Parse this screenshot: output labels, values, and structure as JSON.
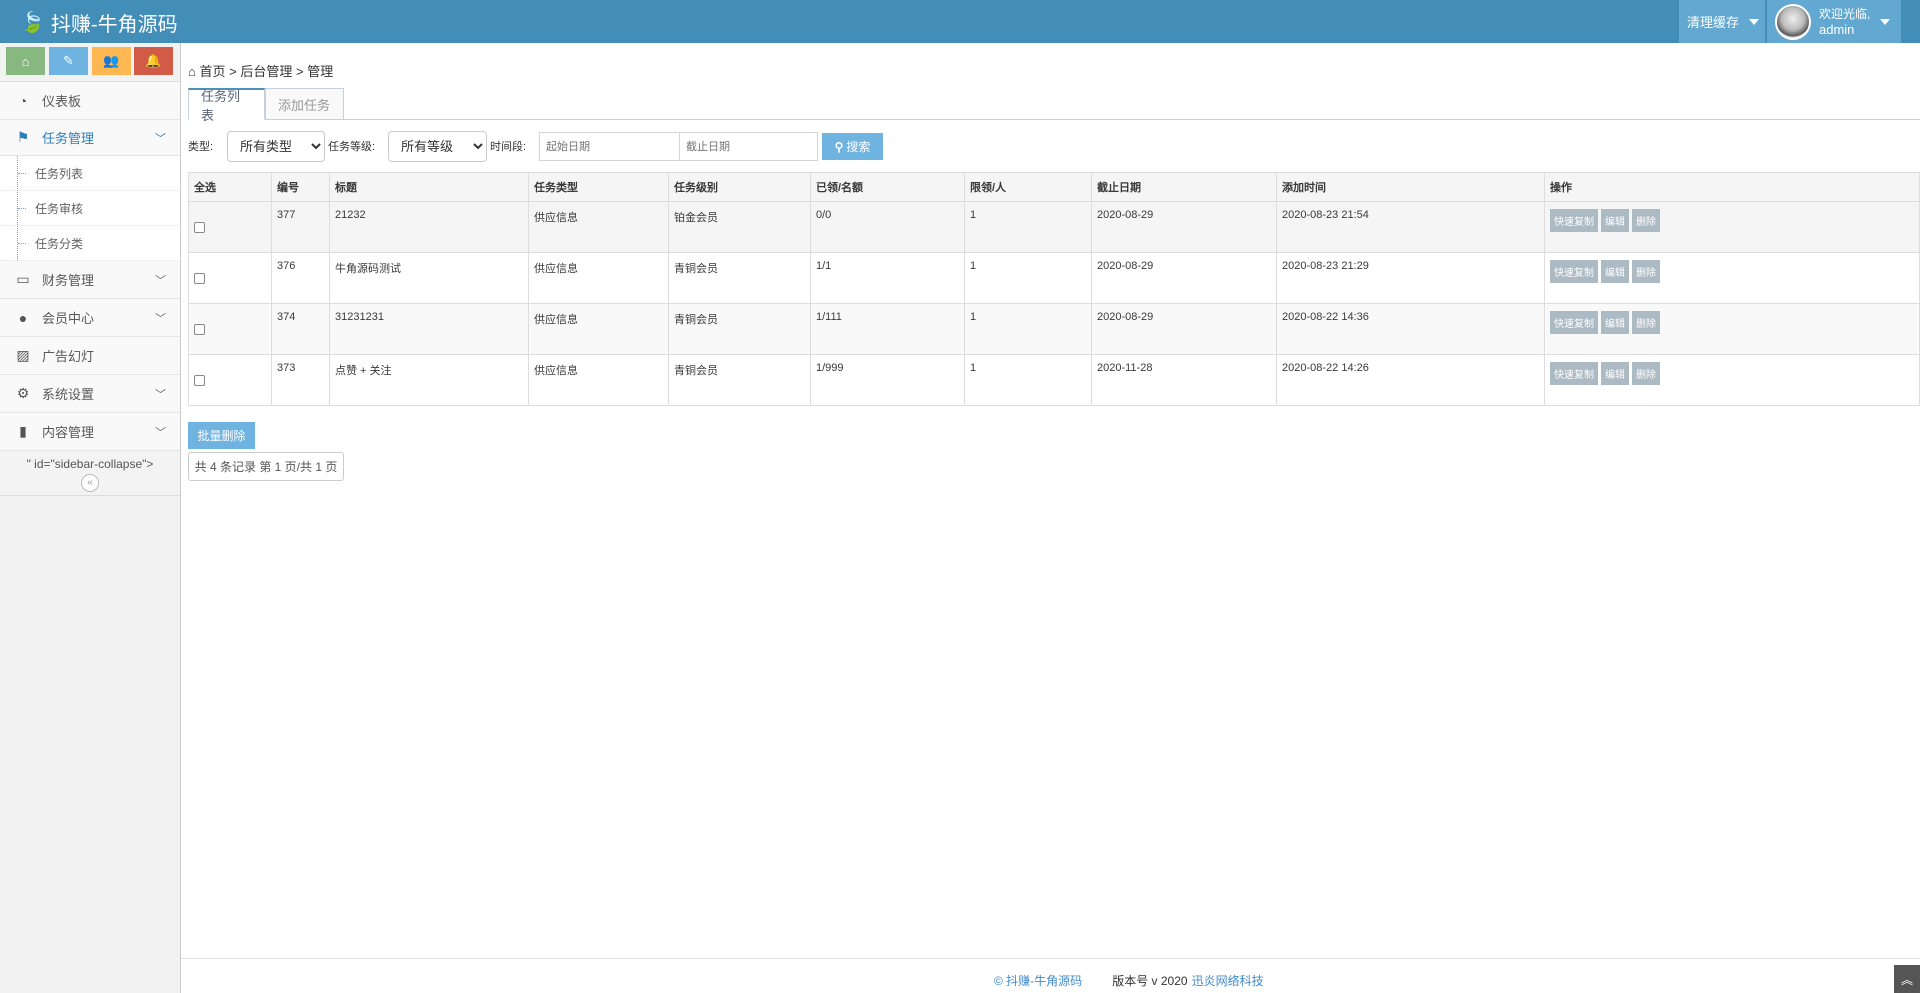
{
  "header": {
    "brand": "抖赚-牛角源码",
    "clear_cache": "清理缓存",
    "welcome": "欢迎光临,",
    "username": "admin"
  },
  "colors": {
    "header": "#438eb9",
    "accent": "#6fb3e0",
    "success": "#87b87f",
    "warning": "#ffb752",
    "danger": "#d15b47",
    "action_button": "#abbac3"
  },
  "sidebar": {
    "shortcuts": [
      {
        "icon": "home-icon"
      },
      {
        "icon": "pencil-icon"
      },
      {
        "icon": "users-icon"
      },
      {
        "icon": "bell-icon"
      }
    ],
    "items": [
      {
        "label": "仪表板",
        "icon": "dashboard-icon"
      },
      {
        "label": "任务管理",
        "icon": "flag-icon",
        "active": true,
        "children": [
          "任务列表",
          "任务审核",
          "任务分类"
        ]
      },
      {
        "label": "财务管理",
        "icon": "hdd-icon"
      },
      {
        "label": "会员中心",
        "icon": "user-icon"
      },
      {
        "label": "广告幻灯",
        "icon": "picture-icon"
      },
      {
        "label": "系统设置",
        "icon": "cog-icon"
      },
      {
        "label": "内容管理",
        "icon": "book-icon"
      }
    ],
    "stray_text": "\" id=\"sidebar-collapse\">"
  },
  "breadcrumb": [
    "首页",
    "后台管理",
    "管理"
  ],
  "breadcrumb_sep": ">",
  "tabs": [
    {
      "label": "任务列表",
      "active": true
    },
    {
      "label": "添加任务"
    }
  ],
  "filters": {
    "type_label": "类型:",
    "type_value": "所有类型",
    "level_label": "任务等级:",
    "level_value": "所有等级",
    "period_label": "时间段:",
    "start_placeholder": "起始日期",
    "end_placeholder": "截止日期",
    "search": "搜索"
  },
  "table": {
    "headers": [
      "全选",
      "编号",
      "标题",
      "任务类型",
      "任务级别",
      "已领/名额",
      "限领/人",
      "截止日期",
      "添加时间",
      "操作"
    ],
    "rows": [
      {
        "id": "377",
        "title": "21232",
        "type": "供应信息",
        "level": "铂金会员",
        "claimed": "0/0",
        "limit": "1",
        "deadline": "2020-08-29",
        "added": "2020-08-23 21:54"
      },
      {
        "id": "376",
        "title": "牛角源码测试",
        "type": "供应信息",
        "level": "青铜会员",
        "claimed": "1/1",
        "limit": "1",
        "deadline": "2020-08-29",
        "added": "2020-08-23 21:29"
      },
      {
        "id": "374",
        "title": "31231231",
        "type": "供应信息",
        "level": "青铜会员",
        "claimed": "1/111",
        "limit": "1",
        "deadline": "2020-08-29",
        "added": "2020-08-22 14:36"
      },
      {
        "id": "373",
        "title": "点赞 + 关注",
        "type": "供应信息",
        "level": "青铜会员",
        "claimed": "1/999",
        "limit": "1",
        "deadline": "2020-11-28",
        "added": "2020-08-22 14:26"
      }
    ],
    "actions": [
      "快速复制",
      "编辑",
      "删除"
    ]
  },
  "batch_delete": "批量删除",
  "pagination": "共 4 条记录 第 1 页/共 1 页",
  "footer": {
    "copyright": "© 抖赚-牛角源码",
    "version": "版本号 v 2020",
    "company": "迅炎网络科技"
  }
}
